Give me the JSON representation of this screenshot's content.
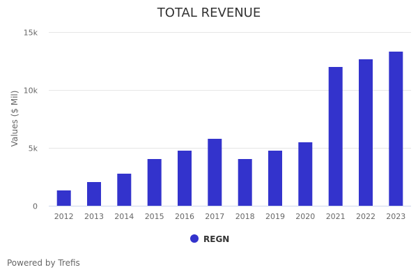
{
  "chart_data": {
    "type": "bar",
    "title": "TOTAL REVENUE",
    "xlabel": "",
    "ylabel": "Values ($ Mil)",
    "ylim": [
      0,
      15000
    ],
    "yticks": [
      0,
      5000,
      10000,
      15000
    ],
    "ytick_labels": [
      "0",
      "5k",
      "10k",
      "15k"
    ],
    "grid": true,
    "legend_position": "bottom-center",
    "categories": [
      "2012",
      "2013",
      "2014",
      "2015",
      "2016",
      "2017",
      "2018",
      "2019",
      "2020",
      "2021",
      "2022",
      "2023"
    ],
    "series": [
      {
        "name": "REGN",
        "color": "#3333cc",
        "values": [
          1325,
          2048,
          2771,
          4036,
          4759,
          5783,
          4036,
          4759,
          5482,
          11988,
          12651,
          13313
        ]
      }
    ]
  },
  "footer": {
    "credit": "Powered by Trefis"
  }
}
